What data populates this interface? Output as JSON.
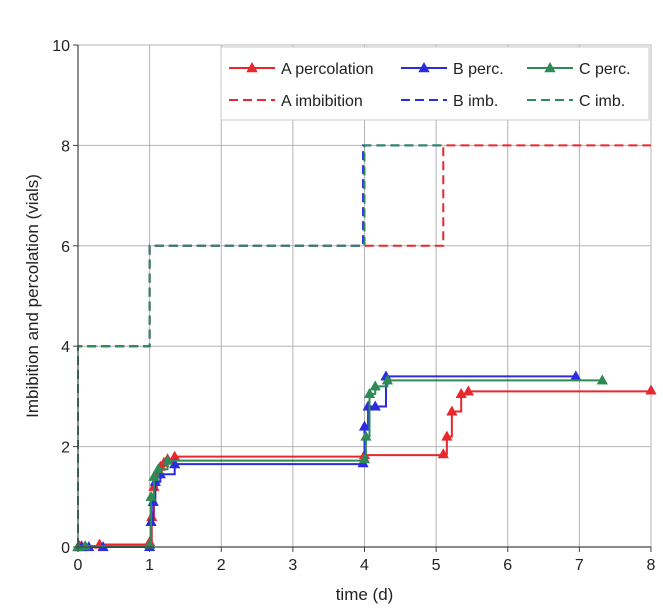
{
  "chart_data": {
    "type": "line",
    "xlabel": "time (d)",
    "ylabel": "Imbibition and percolation (vials)",
    "xlim": [
      0,
      8
    ],
    "ylim": [
      0,
      10
    ],
    "xticks": [
      0,
      1,
      2,
      3,
      4,
      5,
      6,
      7,
      8
    ],
    "yticks": [
      0,
      2,
      4,
      6,
      8,
      10
    ],
    "grid": true,
    "legend_position": "top-right",
    "series": [
      {
        "name": "A percolation",
        "kind": "percolation",
        "color": "#e8282d",
        "dash": "solid",
        "marker": "triangle",
        "points": [
          [
            0,
            0
          ],
          [
            0.02,
            0.02
          ],
          [
            0.05,
            0.02
          ],
          [
            0.3,
            0.05
          ],
          [
            1.0,
            0.1
          ],
          [
            1.03,
            0.6
          ],
          [
            1.06,
            1.2
          ],
          [
            1.1,
            1.45
          ],
          [
            1.15,
            1.6
          ],
          [
            1.2,
            1.68
          ],
          [
            1.25,
            1.75
          ],
          [
            1.35,
            1.8
          ],
          [
            4.0,
            1.83
          ],
          [
            5.1,
            1.85
          ],
          [
            5.15,
            2.2
          ],
          [
            5.22,
            2.7
          ],
          [
            5.35,
            3.05
          ],
          [
            5.45,
            3.1
          ],
          [
            8.0,
            3.12
          ]
        ]
      },
      {
        "name": "B perc.",
        "kind": "percolation",
        "color": "#2b2be0",
        "dash": "solid",
        "marker": "triangle",
        "points": [
          [
            0,
            0
          ],
          [
            0.05,
            0
          ],
          [
            0.15,
            0
          ],
          [
            0.35,
            0
          ],
          [
            1.0,
            0
          ],
          [
            1.02,
            0.5
          ],
          [
            1.05,
            0.9
          ],
          [
            1.08,
            1.3
          ],
          [
            1.15,
            1.45
          ],
          [
            1.35,
            1.65
          ],
          [
            3.98,
            1.67
          ],
          [
            4.0,
            2.4
          ],
          [
            4.05,
            2.8
          ],
          [
            4.15,
            2.8
          ],
          [
            4.3,
            3.4
          ],
          [
            6.95,
            3.4
          ]
        ]
      },
      {
        "name": "C perc.",
        "kind": "percolation",
        "color": "#2e8b57",
        "dash": "solid",
        "marker": "triangle",
        "points": [
          [
            0,
            0
          ],
          [
            0.1,
            0.02
          ],
          [
            1.0,
            0.05
          ],
          [
            1.02,
            1.0
          ],
          [
            1.06,
            1.4
          ],
          [
            1.12,
            1.55
          ],
          [
            1.25,
            1.72
          ],
          [
            4.0,
            1.75
          ],
          [
            4.02,
            2.2
          ],
          [
            4.07,
            3.05
          ],
          [
            4.15,
            3.2
          ],
          [
            4.32,
            3.32
          ],
          [
            7.32,
            3.32
          ]
        ]
      },
      {
        "name": "A imbibition",
        "kind": "imbibition",
        "color": "#e8282d",
        "dash": "dashed",
        "marker": "none",
        "points": [
          [
            0,
            0
          ],
          [
            0,
            4
          ],
          [
            1.0,
            4
          ],
          [
            1.0,
            6
          ],
          [
            5.1,
            6
          ],
          [
            5.1,
            8
          ],
          [
            8.0,
            8
          ]
        ]
      },
      {
        "name": "B imb.",
        "kind": "imbibition",
        "color": "#2b2be0",
        "dash": "dashed",
        "marker": "none",
        "points": [
          [
            0,
            0
          ],
          [
            0,
            4
          ],
          [
            1.0,
            4
          ],
          [
            1.0,
            6
          ],
          [
            3.98,
            6
          ],
          [
            3.98,
            8
          ],
          [
            5.1,
            8
          ]
        ]
      },
      {
        "name": "C imb.",
        "kind": "imbibition",
        "color": "#2e8b57",
        "dash": "dashed",
        "marker": "none",
        "points": [
          [
            0,
            0
          ],
          [
            0,
            4
          ],
          [
            1.0,
            4
          ],
          [
            1.0,
            6
          ],
          [
            4.0,
            6
          ],
          [
            4.0,
            8
          ],
          [
            5.1,
            8
          ]
        ]
      }
    ],
    "legend_rows": [
      [
        "A percolation",
        "B perc.",
        "C perc."
      ],
      [
        "A imbibition",
        "B imb.",
        "C imb."
      ]
    ]
  }
}
